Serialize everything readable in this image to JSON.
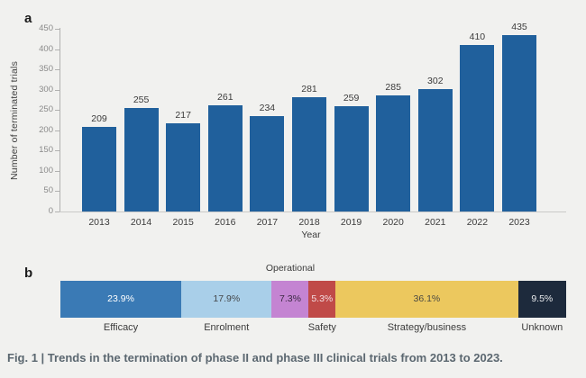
{
  "figure": {
    "panel_a_label": "a",
    "panel_b_label": "b",
    "caption": "Fig. 1 | Trends in the termination of phase II and phase III clinical trials from 2013 to 2023."
  },
  "chart_data": [
    {
      "type": "bar",
      "panel": "a",
      "title": "",
      "xlabel": "Year",
      "ylabel": "Number of terminated trials",
      "categories": [
        "2013",
        "2014",
        "2015",
        "2016",
        "2017",
        "2018",
        "2019",
        "2020",
        "2021",
        "2022",
        "2023"
      ],
      "values": [
        209,
        255,
        217,
        261,
        234,
        281,
        259,
        285,
        302,
        410,
        435
      ],
      "ylim": [
        0,
        450
      ],
      "ytick_step": 50,
      "grid": false,
      "legend": "none",
      "bar_color": "#20609c",
      "data_labels_shown": true
    },
    {
      "type": "bar",
      "panel": "b",
      "subtype": "stacked-horizontal-percentage",
      "grid": false,
      "legend": "none",
      "segments": [
        {
          "label": "Efficacy",
          "value_pct": 23.9,
          "display": "23.9%",
          "color": "#3a7ab5",
          "text_color": "#ffffff",
          "label_position": "below"
        },
        {
          "label": "Enrolment",
          "value_pct": 17.9,
          "display": "17.9%",
          "color": "#a9cfe9",
          "text_color": "#45484b",
          "label_position": "below"
        },
        {
          "label": "Operational",
          "value_pct": 7.3,
          "display": "7.3%",
          "color": "#c484d2",
          "text_color": "#3c2b44",
          "label_position": "above"
        },
        {
          "label": "Safety",
          "value_pct": 5.3,
          "display": "5.3%",
          "color": "#c04a48",
          "text_color": "#f2dde1",
          "label_position": "below"
        },
        {
          "label": "Strategy/business",
          "value_pct": 36.1,
          "display": "36.1%",
          "color": "#ecc85e",
          "text_color": "#4b4a43",
          "label_position": "below"
        },
        {
          "label": "Unknown",
          "value_pct": 9.5,
          "display": "9.5%",
          "color": "#1d2a3c",
          "text_color": "#e8eaec",
          "label_position": "below"
        }
      ]
    }
  ]
}
